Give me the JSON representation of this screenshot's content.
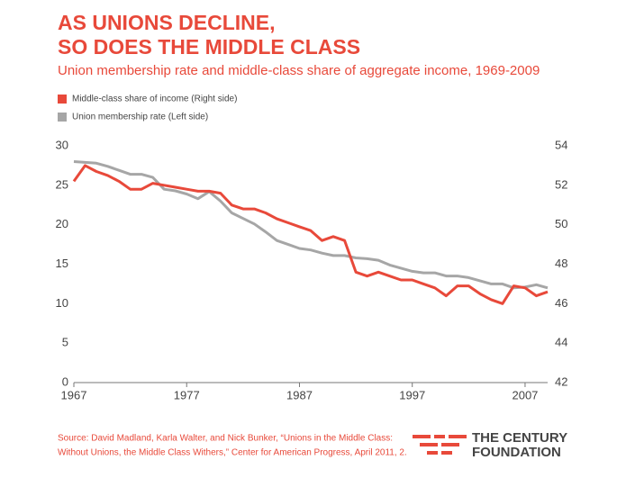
{
  "chart_data": {
    "type": "line",
    "title": [
      "AS UNIONS DECLINE,",
      "SO DOES THE MIDDLE CLASS"
    ],
    "subtitle": "Union membership rate and middle-class share of aggregate income, 1969-2009",
    "x": [
      1967,
      1968,
      1969,
      1970,
      1971,
      1972,
      1973,
      1974,
      1975,
      1976,
      1977,
      1978,
      1979,
      1980,
      1981,
      1982,
      1983,
      1984,
      1985,
      1986,
      1987,
      1988,
      1989,
      1990,
      1991,
      1992,
      1993,
      1994,
      1995,
      1996,
      1997,
      1998,
      1999,
      2000,
      2001,
      2002,
      2003,
      2004,
      2005,
      2006,
      2007,
      2008,
      2009
    ],
    "series": [
      {
        "name": "Middle-class share of income (Right side)",
        "color": "#e8493a",
        "axis": "y2",
        "values": [
          52.2,
          53.0,
          52.7,
          52.5,
          52.2,
          51.8,
          51.8,
          52.1,
          52.0,
          51.9,
          51.8,
          51.7,
          51.7,
          51.6,
          51.0,
          50.8,
          50.8,
          50.6,
          50.3,
          50.1,
          49.9,
          49.7,
          49.2,
          49.4,
          49.2,
          47.6,
          47.4,
          47.6,
          47.4,
          47.2,
          47.2,
          47.0,
          46.8,
          46.4,
          46.9,
          46.9,
          46.5,
          46.2,
          46.0,
          46.9,
          46.8,
          46.4,
          46.6
        ]
      },
      {
        "name": "Union membership rate (Left side)",
        "color": "#a6a6a6",
        "values": [
          28.0,
          27.9,
          27.8,
          27.4,
          26.9,
          26.4,
          26.4,
          26.0,
          24.5,
          24.3,
          23.9,
          23.3,
          24.2,
          23.0,
          21.5,
          20.8,
          20.1,
          19.1,
          18.0,
          17.5,
          17.0,
          16.8,
          16.4,
          16.1,
          16.1,
          15.8,
          15.7,
          15.5,
          14.9,
          14.5,
          14.1,
          13.9,
          13.9,
          13.5,
          13.5,
          13.3,
          12.9,
          12.5,
          12.5,
          12.0,
          12.1,
          12.4,
          12.0
        ]
      }
    ],
    "xlim": [
      1967,
      2009
    ],
    "xticks": [
      1967,
      1977,
      1987,
      1997,
      2007
    ],
    "ylim": [
      0,
      30
    ],
    "yticks": [
      0,
      5,
      10,
      15,
      20,
      25,
      30
    ],
    "y2lim": [
      42,
      54
    ],
    "y2ticks": [
      42,
      44,
      46,
      48,
      50,
      52,
      54
    ],
    "source": [
      "Source: David Madland, Karla Walter, and Nick Bunker, “Unions in the Middle Class:",
      "Without Unions, the Middle Class Withers,” Center for American Progress, April 2011, 2."
    ],
    "logo": [
      "THE CENTURY",
      "FOUNDATION"
    ]
  }
}
